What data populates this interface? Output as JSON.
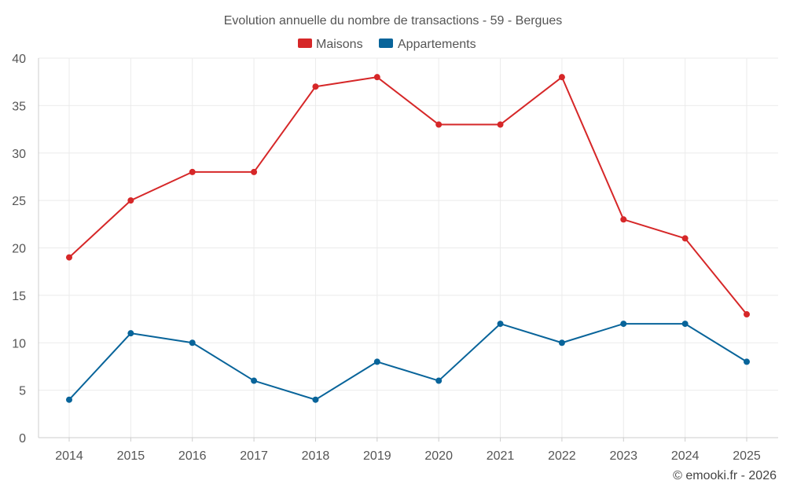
{
  "chart_data": {
    "type": "line",
    "title": "Evolution annuelle du nombre de transactions - 59 - Bergues",
    "categories": [
      "2014",
      "2015",
      "2016",
      "2017",
      "2018",
      "2019",
      "2020",
      "2021",
      "2022",
      "2023",
      "2024",
      "2025"
    ],
    "series": [
      {
        "name": "Maisons",
        "color": "#d62728",
        "values": [
          19,
          25,
          28,
          28,
          37,
          38,
          33,
          33,
          38,
          23,
          21,
          13
        ]
      },
      {
        "name": "Appartements",
        "color": "#08649a",
        "values": [
          4,
          11,
          10,
          6,
          4,
          8,
          6,
          12,
          10,
          12,
          12,
          8
        ]
      }
    ],
    "ylim": [
      0,
      40
    ],
    "yticks": [
      0,
      5,
      10,
      15,
      20,
      25,
      30,
      35,
      40
    ],
    "xlabel": "",
    "ylabel": "",
    "grid": true,
    "legend_position": "top-center"
  },
  "credit": "© emooki.fr - 2026"
}
